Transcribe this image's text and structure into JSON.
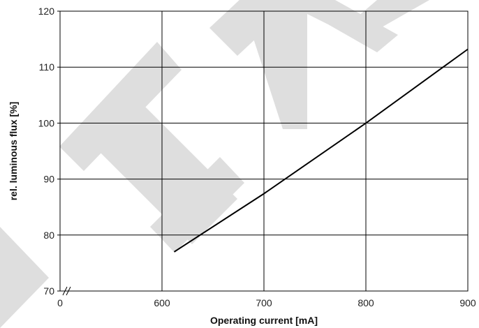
{
  "chart_data": {
    "type": "line",
    "title": "",
    "xlabel": "Operating current [mA]",
    "ylabel": "rel. luminous flux [%]",
    "x_tick_labels": [
      "0",
      "600",
      "700",
      "800",
      "900"
    ],
    "y_tick_labels": [
      "70",
      "80",
      "90",
      "100",
      "110",
      "120"
    ],
    "y_ticks": [
      70,
      80,
      90,
      100,
      110,
      120
    ],
    "xlim": [
      500,
      900
    ],
    "xlim_note_label": "0",
    "ylim": [
      70,
      120
    ],
    "grid": true,
    "x_axis_break": true,
    "series": [
      {
        "x": [
          612,
          700,
          800,
          900
        ],
        "y": [
          77,
          87.4,
          100,
          113.2
        ]
      }
    ],
    "watermark": "PHA",
    "colors": {
      "line": "#000000",
      "grid": "#000000",
      "watermark": "#dedede"
    }
  }
}
